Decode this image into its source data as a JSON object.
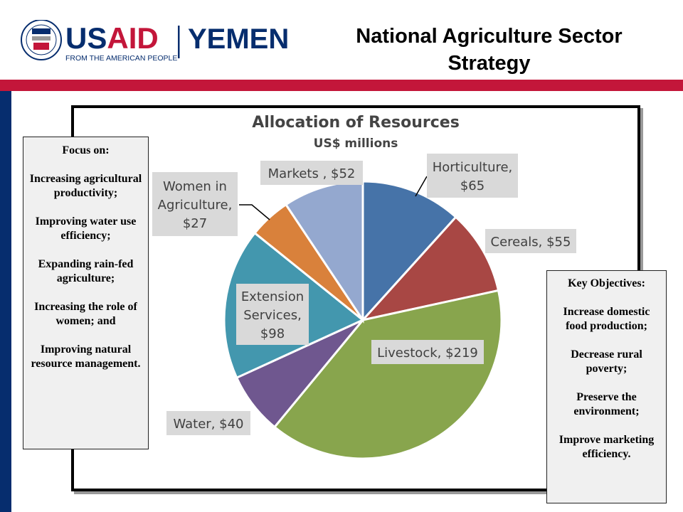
{
  "header": {
    "logo": {
      "seal_text": "UNITED STATES AGENCY INTERNATIONAL DEVELOPMENT",
      "brand": "USAID",
      "country": "YEMEN",
      "tagline": "FROM THE AMERICAN PEOPLE"
    },
    "title": "National Agriculture Sector Strategy"
  },
  "colors": {
    "red": "#c3163a",
    "navy": "#062d6e"
  },
  "focus_box": {
    "heading": "Focus on:",
    "items": [
      "Increasing agricultural productivity;",
      "Improving water use  efficiency;",
      "Expanding rain-fed agriculture;",
      "Increasing the role of  women; and",
      "Improving natural resource management."
    ]
  },
  "objectives_box": {
    "heading": "Key Objectives:",
    "items": [
      "Increase domestic food production;",
      "Decrease rural poverty;",
      "Preserve the environment;",
      "Improve marketing efficiency."
    ]
  },
  "chart_data": {
    "type": "pie",
    "title": "Allocation of Resources",
    "subtitle": "US$ millions",
    "start": "12 o'clock, clockwise",
    "slices": [
      {
        "name": "Horticulture",
        "value": 65,
        "label": [
          "Horticulture,",
          "$65"
        ],
        "color": "#4673a8"
      },
      {
        "name": "Cereals",
        "value": 55,
        "label": [
          "Cereals,  $55"
        ],
        "color": "#a84744"
      },
      {
        "name": "Livestock",
        "value": 219,
        "label": [
          "Livestock,  $219"
        ],
        "color": "#88a54d"
      },
      {
        "name": "Water",
        "value": 40,
        "label": [
          "Water,  $40"
        ],
        "color": "#6f578f"
      },
      {
        "name": "Extension Services",
        "value": 98,
        "label": [
          "Extension",
          "Services,",
          "$98"
        ],
        "color": "#4397ae"
      },
      {
        "name": "Women in Agriculture",
        "value": 27,
        "label": [
          "Women in",
          "Agriculture,",
          "$27"
        ],
        "color": "#d9813b"
      },
      {
        "name": "Markets",
        "value": 52,
        "label": [
          "Markets ,  $52"
        ],
        "color": "#94a8cf"
      }
    ]
  }
}
